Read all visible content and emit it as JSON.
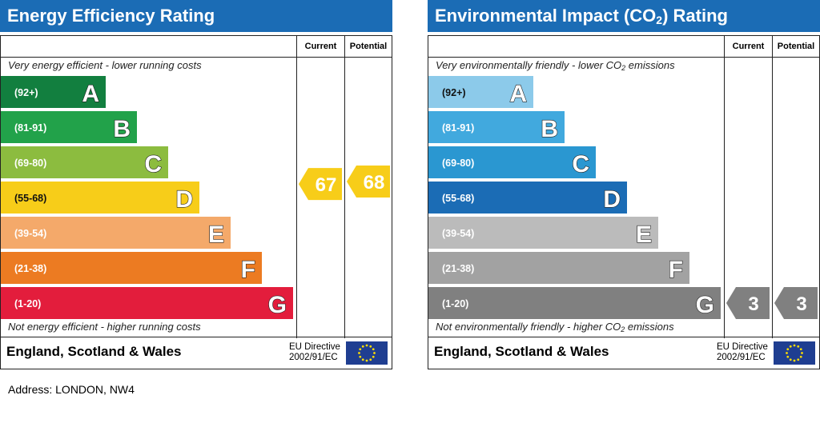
{
  "colors": {
    "header_bg": "#1b6cb5",
    "energy_bands": [
      "#127f3f",
      "#22a24a",
      "#8cbc3f",
      "#f7cd19",
      "#f4a96a",
      "#ec7b22",
      "#e31d3c"
    ],
    "environmental_bands": [
      "#8ccaea",
      "#41a9de",
      "#2a97d1",
      "#1b6cb5",
      "#bbbbbb",
      "#a2a2a2",
      "#808080"
    ],
    "rating_67": "#f7cd19",
    "rating_68": "#f7cd19",
    "rating_3": "#808080",
    "eu_flag": "#1f3e91",
    "eu_stars": "#ffdd00"
  },
  "chart_data": [
    {
      "type": "bar",
      "title": "Energy Efficiency Rating",
      "columns": {
        "current": "Current",
        "potential": "Potential"
      },
      "top_caption": "Very energy efficient - lower running costs",
      "bottom_caption": "Not energy efficient - higher running costs",
      "categories": [
        "A",
        "B",
        "C",
        "D",
        "E",
        "F",
        "G"
      ],
      "ranges": [
        "(92+)",
        "(81-91)",
        "(69-80)",
        "(55-68)",
        "(39-54)",
        "(21-38)",
        "(1-20)"
      ],
      "current": {
        "value": 67,
        "label": "67"
      },
      "potential": {
        "value": 68,
        "label": "68"
      },
      "footer": {
        "region": "England, Scotland & Wales",
        "eu_line1": "EU Directive",
        "eu_line2": "2002/91/EC"
      }
    },
    {
      "type": "bar",
      "title": "Environmental Impact (CO2) Rating",
      "columns": {
        "current": "Current",
        "potential": "Potential"
      },
      "top_caption": "Very environmentally friendly - lower CO2 emissions",
      "bottom_caption": "Not environmentally friendly - higher CO2 emissions",
      "categories": [
        "A",
        "B",
        "C",
        "D",
        "E",
        "F",
        "G"
      ],
      "ranges": [
        "(92+)",
        "(81-91)",
        "(69-80)",
        "(55-68)",
        "(39-54)",
        "(21-38)",
        "(1-20)"
      ],
      "current": {
        "value": 3,
        "label": "3"
      },
      "potential": {
        "value": 3,
        "label": "3"
      },
      "footer": {
        "region": "England, Scotland & Wales",
        "eu_line1": "EU Directive",
        "eu_line2": "2002/91/EC"
      }
    }
  ],
  "address": "Address: LONDON, NW4"
}
